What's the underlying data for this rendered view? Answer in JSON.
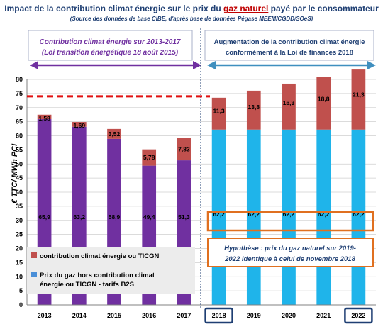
{
  "chart_data": {
    "type": "bar",
    "stacked": true,
    "title_parts": [
      "Impact de la contribution climat énergie sur le prix du ",
      "gaz naturel",
      " payé par le consommateur"
    ],
    "subtitle": "(Source des données de base CIBE, d'après base de données Pégase MEEM/CGDD/SOeS)",
    "ylabel": "€ TTC/ MWh PCI",
    "xlabel": "",
    "ylim": [
      0,
      80
    ],
    "yticks": [
      "0",
      "5",
      "10",
      "15",
      "20",
      "25",
      "30",
      "35",
      "40",
      "45",
      "50",
      "55",
      "60",
      "65",
      "70",
      "75",
      "80"
    ],
    "grid": true,
    "categories": [
      "2013",
      "2014",
      "2015",
      "2016",
      "2017",
      "2018",
      "2019",
      "2020",
      "2021",
      "2022"
    ],
    "series": [
      {
        "name": "Prix du gaz hors contribution climat énergie ou TICGN - tarifs B2S",
        "values": [
          65.9,
          63.2,
          58.9,
          49.4,
          51.3,
          62.2,
          62.2,
          62.2,
          62.2,
          62.2
        ],
        "labels": [
          "65,9",
          "63,2",
          "58,9",
          "49,4",
          "51,3",
          "62,2",
          "62,2",
          "62,2",
          "62,2",
          "62,2"
        ]
      },
      {
        "name": "contribution climat énergie ou TICGN",
        "values": [
          1.58,
          1.69,
          3.52,
          5.78,
          7.83,
          11.3,
          13.8,
          16.3,
          18.8,
          21.3
        ],
        "labels": [
          "1,58",
          "1,69",
          "3,52",
          "5,78",
          "7,83",
          "11,3",
          "13,8",
          "16,3",
          "18,8",
          "21,3"
        ]
      }
    ],
    "legend": {
      "placement": "bottom-left",
      "items": [
        "contribution climat énergie ou TICGN",
        "Prix du gaz hors contribution climat énergie ou TICGN - tarifs B2S"
      ]
    },
    "reference_line_value": 74,
    "annotations": {
      "period1_line1": "Contribution climat énergie sur 2013-2017",
      "period1_line2": "(Loi transition énergétique 18 août 2015)",
      "period2_line1": "Augmentation de la contribution climat énergie",
      "period2_line2": "conformément à la Loi de finances 2018",
      "hypothesis_line1": "Hypothèse :  prix du gaz naturel sur 2019-",
      "hypothesis_line2": "2022 identique à celui de novembre 2018"
    },
    "colors": {
      "historic_base": "#7030a0",
      "historic_cce": "#c0504d",
      "projected_base": "#1fb4ea",
      "projected_cce": "#c0504d",
      "legend_cce": "#c0504d",
      "legend_base": "#4a8fd8",
      "reference_line": "#e01010",
      "period1": "#7030a0",
      "period2": "#3f8fbf",
      "highlight_box": "#e07020",
      "year_box": "#1f3f73"
    },
    "boxed_categories": [
      "2018",
      "2022"
    ]
  }
}
